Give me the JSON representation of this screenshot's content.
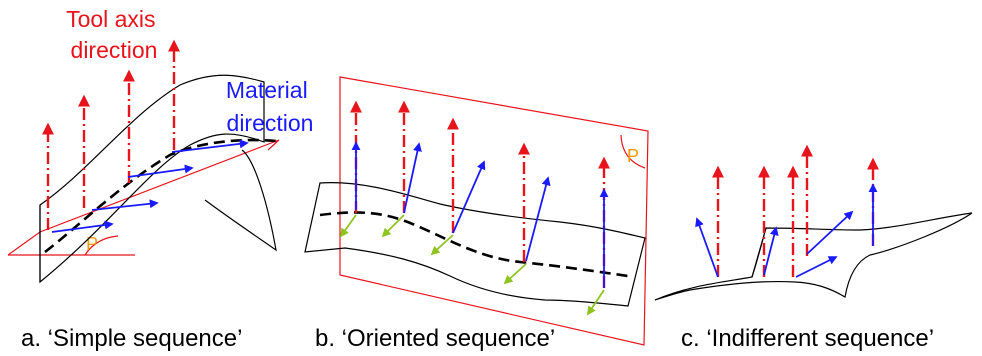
{
  "labels": {
    "tool_axis": [
      "Tool axis",
      "direction"
    ],
    "material": [
      "Material",
      "direction"
    ],
    "plane_symbol": "P"
  },
  "captions": {
    "a": "a. ‘Simple sequence’",
    "b": "b. ‘Oriented sequence’",
    "c": "c. ‘Indifferent sequence’"
  },
  "colors": {
    "tool_axis": "#e8141c",
    "material": "#1a1aff",
    "secondary": "#8fc31f",
    "plane_label": "#f59b00"
  }
}
